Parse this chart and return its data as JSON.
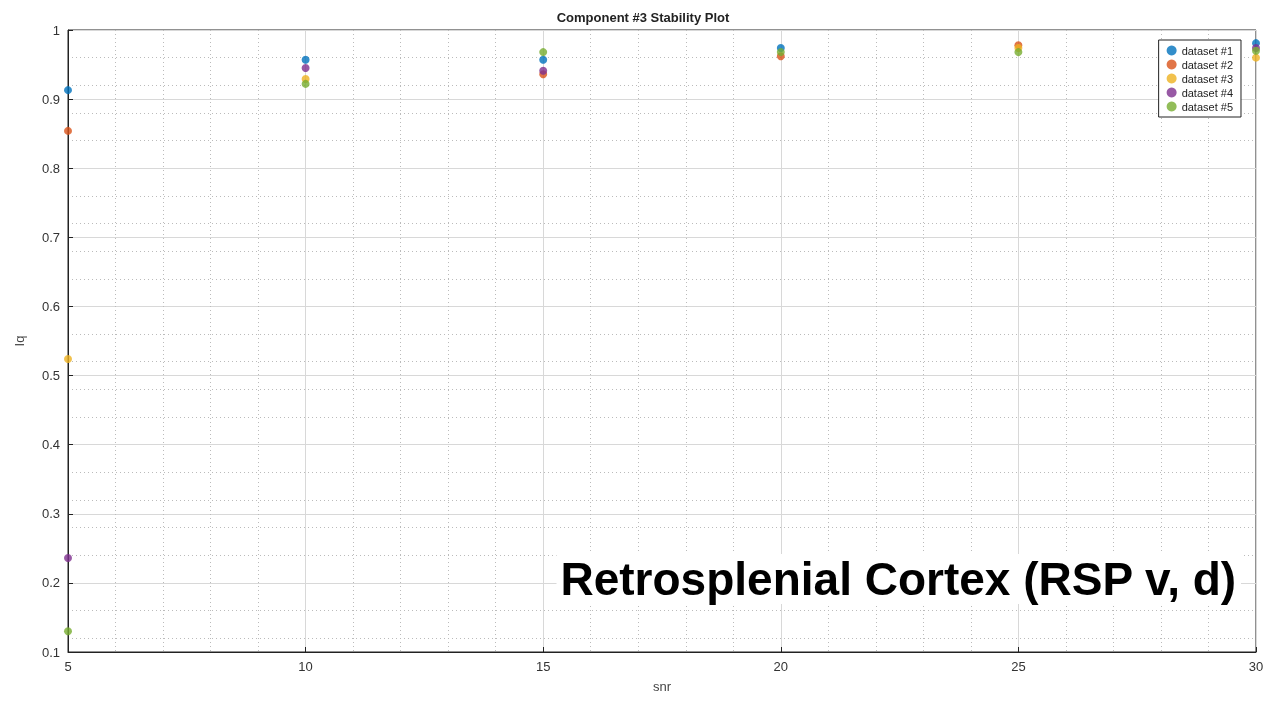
{
  "chart_data": {
    "type": "scatter",
    "title": "Component #3 Stability Plot",
    "xlabel": "snr",
    "ylabel": "Iq",
    "x": [
      5,
      10,
      15,
      20,
      25,
      30
    ],
    "series": [
      {
        "name": "dataset #1",
        "color": "#0072bd",
        "values": [
          0.913,
          0.957,
          0.957,
          0.974,
          null,
          0.981
        ]
      },
      {
        "name": "dataset #2",
        "color": "#d95319",
        "values": [
          0.854,
          null,
          0.936,
          0.962,
          0.978,
          null
        ]
      },
      {
        "name": "dataset #3",
        "color": "#edb120",
        "values": [
          0.524,
          0.929,
          null,
          null,
          0.974,
          0.96
        ]
      },
      {
        "name": "dataset #4",
        "color": "#7e2f8e",
        "values": [
          0.236,
          0.945,
          0.941,
          null,
          null,
          0.974
        ]
      },
      {
        "name": "dataset #5",
        "color": "#77ac30",
        "values": [
          0.13,
          0.922,
          0.968,
          0.968,
          0.968,
          0.97
        ]
      }
    ],
    "xlim": [
      5,
      30
    ],
    "xticks": [
      5,
      10,
      15,
      20,
      25,
      30
    ],
    "ylim": [
      0.1,
      1
    ],
    "yticks": [
      0.1,
      0.2,
      0.3,
      0.4,
      0.5,
      0.6,
      0.7,
      0.8,
      0.9,
      1
    ],
    "grid": true,
    "legend": "top right",
    "marker": "circle",
    "annotations": [
      "Retrosplenial Cortex (RSP v, d)"
    ]
  }
}
